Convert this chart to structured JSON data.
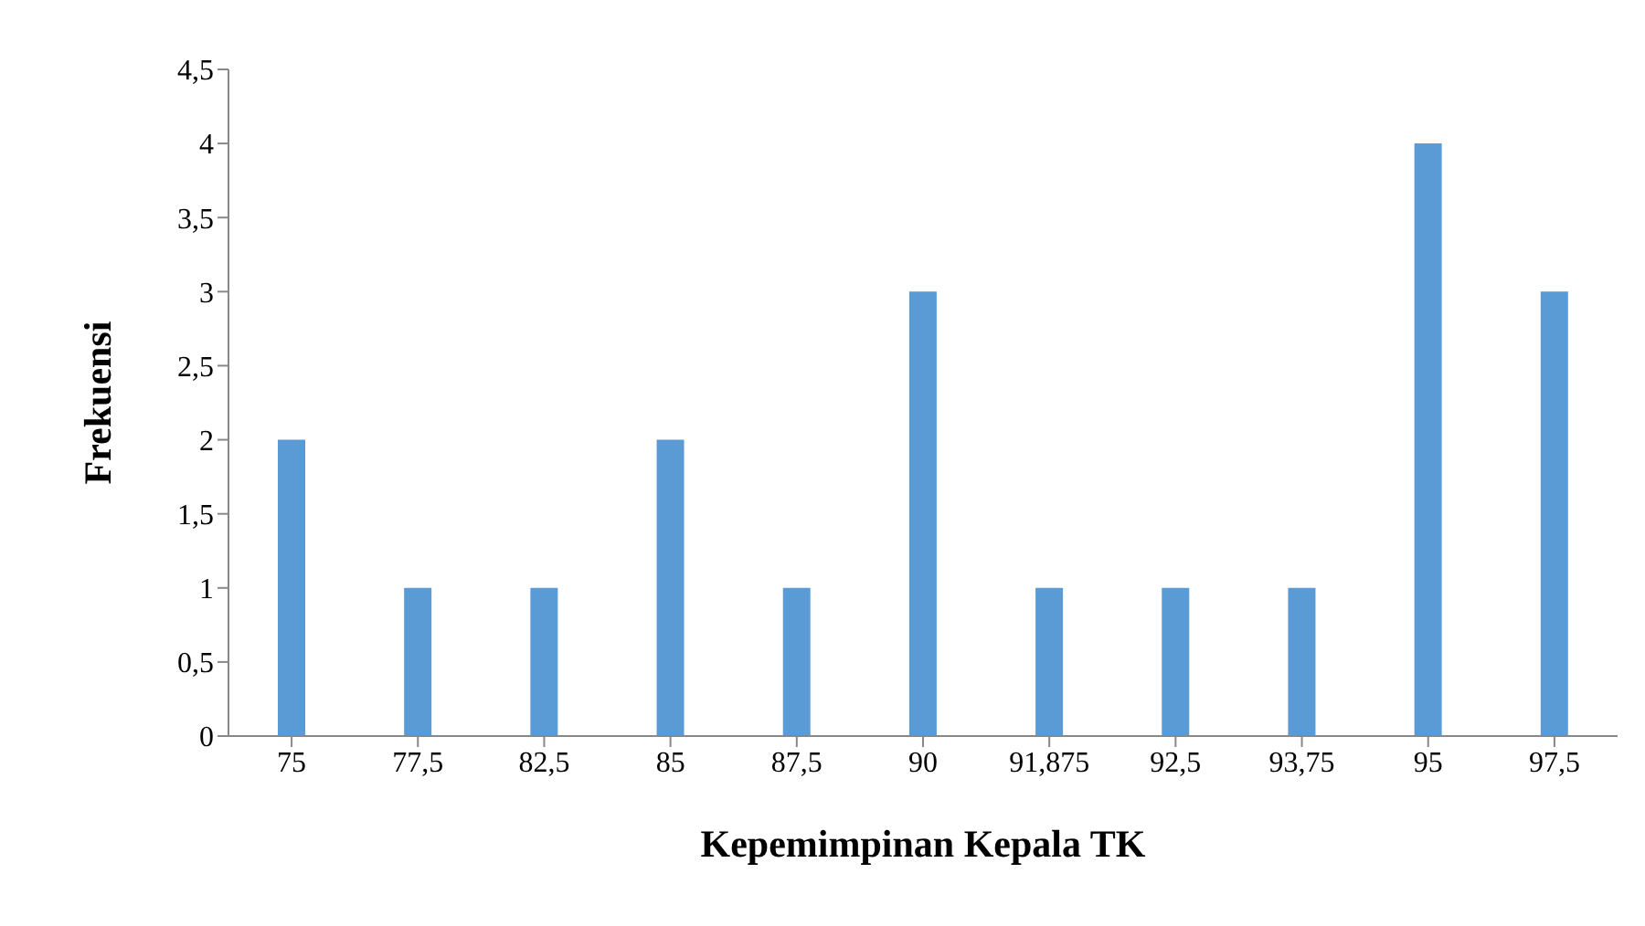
{
  "chart_data": {
    "type": "bar",
    "xlabel": "Kepemimpinan Kepala TK",
    "ylabel": "Frekuensi",
    "categories": [
      "75",
      "77,5",
      "82,5",
      "85",
      "87,5",
      "90",
      "91,875",
      "92,5",
      "93,75",
      "95",
      "97,5"
    ],
    "values": [
      2,
      1,
      1,
      2,
      1,
      3,
      1,
      1,
      1,
      4,
      3
    ],
    "color": "#5b9bd5",
    "ylim": [
      0,
      4.5
    ],
    "yticks": [
      0,
      {
        "value": 0.5,
        "label": "0,5"
      },
      1,
      {
        "value": 1.5,
        "label": "1,5"
      },
      2,
      {
        "value": 2.5,
        "label": "2,5"
      },
      3,
      {
        "value": 3.5,
        "label": "3,5"
      },
      4,
      {
        "value": 4.5,
        "label": "4,5"
      }
    ],
    "grid": false,
    "legend": false
  }
}
